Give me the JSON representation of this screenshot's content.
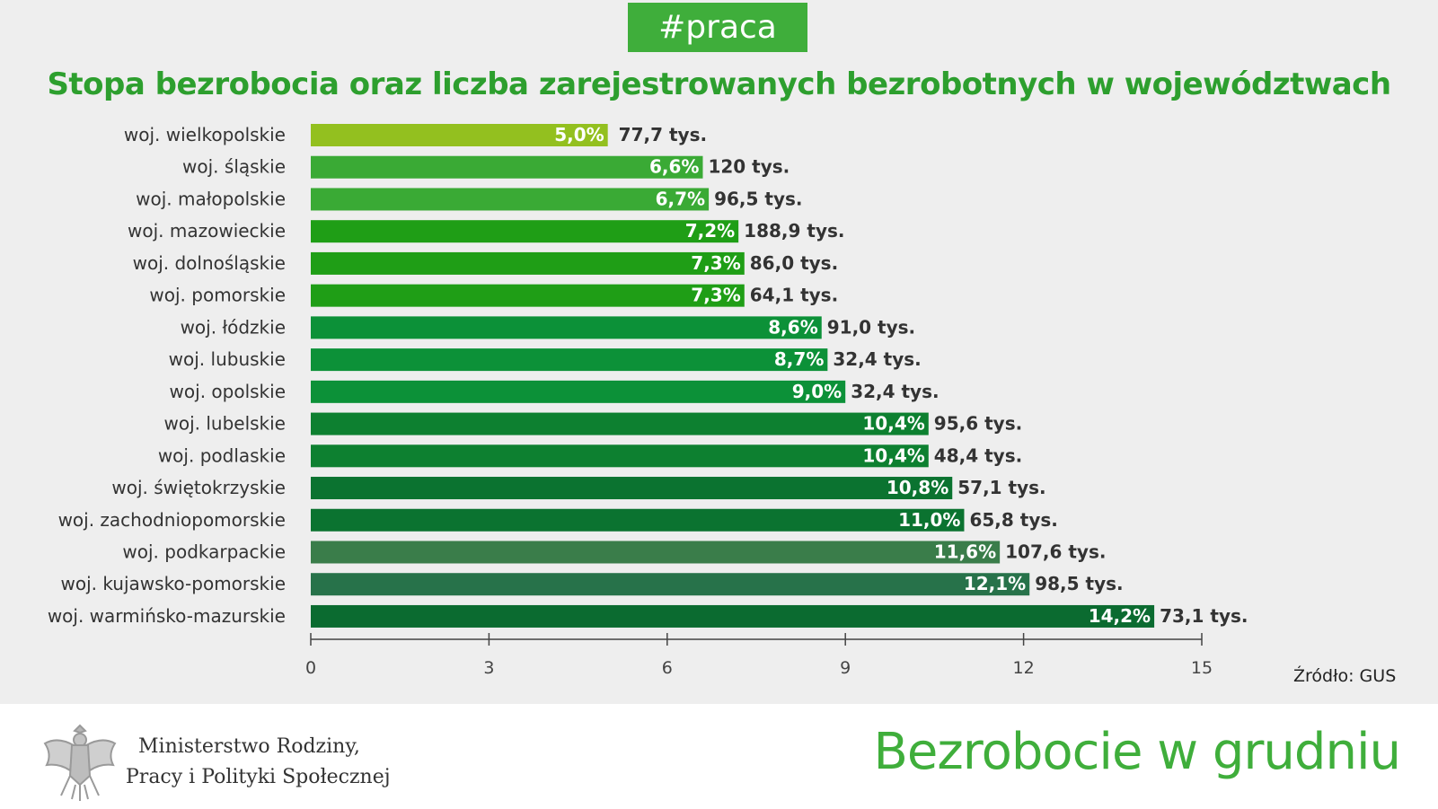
{
  "tag": "#praca",
  "title": "Stopa bezrobocia oraz liczba zarejestrowanych bezrobotnych w województwach",
  "source": "Źródło: GUS",
  "footer": {
    "ministry_line1": "Ministerstwo Rodziny,",
    "ministry_line2": "Pracy i Polityki Społecznej",
    "headline": "Bezrobocie w grudniu"
  },
  "chart_data": {
    "type": "bar",
    "orientation": "horizontal",
    "title": "Stopa bezrobocia oraz liczba zarejestrowanych bezrobotnych w województwach",
    "xlim": [
      0,
      15
    ],
    "xticks": [
      "0",
      "3",
      "6",
      "9",
      "12",
      "15"
    ],
    "categories": [
      "woj. wielkopolskie",
      "woj. śląskie",
      "woj. małopolskie",
      "woj. mazowieckie",
      "woj. dolnośląskie",
      "woj. pomorskie",
      "woj. łódzkie",
      "woj. lubuskie",
      "woj. opolskie",
      "woj. lubelskie",
      "woj. podlaskie",
      "woj. świętokrzyskie",
      "woj. zachodniopomorskie",
      "woj. podkarpackie",
      "woj. kujawsko-pomorskie",
      "woj. warmińsko-mazurskie"
    ],
    "values": [
      5.0,
      6.6,
      6.7,
      7.2,
      7.3,
      7.3,
      8.6,
      8.7,
      9.0,
      10.4,
      10.4,
      10.8,
      11.0,
      11.6,
      12.1,
      14.2
    ],
    "value_labels": [
      "5,0%",
      "6,6%",
      "6,7%",
      "7,2%",
      "7,3%",
      "7,3%",
      "8,6%",
      "8,7%",
      "9,0%",
      "10,4%",
      "10,4%",
      "10,8%",
      "11,0%",
      "11,6%",
      "12,1%",
      "14,2%"
    ],
    "count_labels": [
      "77,7 tys.",
      "120 tys.",
      "96,5 tys.",
      "188,9 tys.",
      "86,0 tys.",
      "64,1 tys.",
      "91,0 tys.",
      "32,4 tys.",
      "32,4 tys.",
      "95,6 tys.",
      "48,4 tys.",
      "57,1 tys.",
      "65,8 tys.",
      "107,6 tys.",
      "98,5 tys.",
      "73,1 tys."
    ],
    "colors": [
      "#93c01f",
      "#3aaa35",
      "#3aaa35",
      "#1f9e16",
      "#1f9e16",
      "#1f9e16",
      "#0c9138",
      "#0c9138",
      "#0c9138",
      "#0d8030",
      "#0d8030",
      "#0b7330",
      "#0b7330",
      "#3a7d4a",
      "#27724a",
      "#0b6b30"
    ]
  }
}
